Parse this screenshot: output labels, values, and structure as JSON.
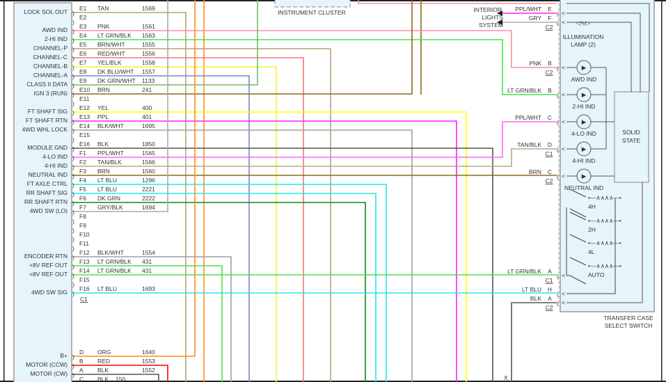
{
  "module_pins": [
    {
      "pin": "E1",
      "color": "TAN",
      "circuit": "1569",
      "func": "LOCK SOL OUT",
      "wire": "#b8a276"
    },
    {
      "pin": "E2",
      "color": "",
      "circuit": "",
      "func": "",
      "wire": ""
    },
    {
      "pin": "E3",
      "color": "PNK",
      "circuit": "1561",
      "func": "AWD IND",
      "wire": "#f68fa0"
    },
    {
      "pin": "E4",
      "color": "LT GRN/BLK",
      "circuit": "1563",
      "func": "2-HI IND",
      "wire": "#4ce24c"
    },
    {
      "pin": "E5",
      "color": "BRN/WHT",
      "circuit": "1555",
      "func": "CHANNEL-P",
      "wire": "#b8a276"
    },
    {
      "pin": "E6",
      "color": "RED/WHT",
      "circuit": "1556",
      "func": "CHANNEL-C",
      "wire": "#f27676"
    },
    {
      "pin": "E7",
      "color": "YEL/BLK",
      "circuit": "1558",
      "func": "CHANNEL-B",
      "wire": "#f5f030"
    },
    {
      "pin": "E8",
      "color": "DK BLU/WHT",
      "circuit": "1557",
      "func": "CHANNEL-A",
      "wire": "#7a86c4"
    },
    {
      "pin": "E9",
      "color": "DK GRN/WHT",
      "circuit": "1133",
      "func": "CLASS II DATA",
      "wire": "#6cba6c"
    },
    {
      "pin": "E10",
      "color": "BRN",
      "circuit": "241",
      "func": "IGN 3 (RUN)",
      "wire": "#8a6a1c"
    },
    {
      "pin": "E11",
      "color": "",
      "circuit": "",
      "func": "",
      "wire": ""
    },
    {
      "pin": "E12",
      "color": "YEL",
      "circuit": "400",
      "func": "FT SHAFT SIG",
      "wire": "#ffff00"
    },
    {
      "pin": "E13",
      "color": "PPL",
      "circuit": "401",
      "func": "FT SHAFT RTN",
      "wire": "#ff1aff"
    },
    {
      "pin": "E14",
      "color": "BLK/WHT",
      "circuit": "1695",
      "func": "4WD WHL LOCK",
      "wire": "#a0a0a0"
    },
    {
      "pin": "E15",
      "color": "",
      "circuit": "",
      "func": "",
      "wire": ""
    },
    {
      "pin": "E16",
      "color": "BLK",
      "circuit": "1850",
      "func": "MODULE GND",
      "wire": "#555555"
    },
    {
      "pin": "F1",
      "color": "PPL/WHT",
      "circuit": "1565",
      "func": "4-LO IND",
      "wire": "#ff66ff"
    },
    {
      "pin": "F2",
      "color": "TAN/BLK",
      "circuit": "1566",
      "func": "4-HI IND",
      "wire": "#b8a88a"
    },
    {
      "pin": "F3",
      "color": "BRN",
      "circuit": "1560",
      "func": "NEUTRAL IND",
      "wire": "#8a6a1c"
    },
    {
      "pin": "F4",
      "color": "LT BLU",
      "circuit": "1296",
      "func": "FT AXLE CTRL",
      "wire": "#22e8e8"
    },
    {
      "pin": "F5",
      "color": "LT BLU",
      "circuit": "2221",
      "func": "RR SHAFT SIG",
      "wire": "#22e8e8"
    },
    {
      "pin": "F6",
      "color": "DK GRN",
      "circuit": "2222",
      "func": "RR SHAFT RTN",
      "wire": "#0a8a0a"
    },
    {
      "pin": "F7",
      "color": "GRY/BLK",
      "circuit": "1694",
      "func": "4WD SW (LO)",
      "wire": "#aaaaaa"
    },
    {
      "pin": "F8",
      "color": "",
      "circuit": "",
      "func": "",
      "wire": ""
    },
    {
      "pin": "F9",
      "color": "",
      "circuit": "",
      "func": "",
      "wire": ""
    },
    {
      "pin": "F10",
      "color": "",
      "circuit": "",
      "func": "",
      "wire": ""
    },
    {
      "pin": "F11",
      "color": "",
      "circuit": "",
      "func": "",
      "wire": ""
    },
    {
      "pin": "F12",
      "color": "BLK/WHT",
      "circuit": "1554",
      "func": "ENCODER RTN",
      "wire": "#a0a0a0"
    },
    {
      "pin": "F13",
      "color": "LT GRN/BLK",
      "circuit": "431",
      "func": "+8V REF OUT",
      "wire": "#4ce24c"
    },
    {
      "pin": "F14",
      "color": "LT GRN/BLK",
      "circuit": "431",
      "func": "+8V REF OUT",
      "wire": "#4ce24c"
    },
    {
      "pin": "F15",
      "color": "",
      "circuit": "",
      "func": "",
      "wire": ""
    },
    {
      "pin": "F16",
      "color": "LT BLU",
      "circuit": "1693",
      "func": "4WD SW SIG",
      "wire": "#22e8e8"
    }
  ],
  "connector_c1_label": "C1",
  "motor_pins": [
    {
      "pin": "D",
      "color": "ORG",
      "circuit": "1640",
      "func": "B+",
      "wire": "#ff8c1a"
    },
    {
      "pin": "B",
      "color": "RED",
      "circuit": "1553",
      "func": "MOTOR (CCW)",
      "wire": "#ff0000"
    },
    {
      "pin": "A",
      "color": "BLK",
      "circuit": "1552",
      "func": "MOTOR (CW)",
      "wire": "#555555"
    },
    {
      "pin": "C",
      "color": "BLK",
      "circuit": "150",
      "func": "",
      "wire": "#555555"
    }
  ],
  "instrument_cluster": "INSTRUMENT CLUSTER",
  "interior_lights": [
    "INTERIOR",
    "LIGHTS",
    "SYSTEM"
  ],
  "switch_pins": [
    {
      "color": "PPL/WHT",
      "pin": "E",
      "conn": ""
    },
    {
      "color": "GRY",
      "pin": "F",
      "conn": "C2"
    },
    {
      "color": "PNK",
      "pin": "B",
      "conn": "C2"
    },
    {
      "color": "LT GRN/BLK",
      "pin": "B",
      "conn": ""
    },
    {
      "color": "PPL/WHT",
      "pin": "C",
      "conn": ""
    },
    {
      "color": "TAN/BLK",
      "pin": "D",
      "conn": "C1"
    },
    {
      "color": "BRN",
      "pin": "C",
      "conn": "C2"
    },
    {
      "color": "LT GRN/BLK",
      "pin": "A",
      "conn": "C1"
    },
    {
      "color": "LT BLU",
      "pin": "H",
      "conn": ""
    },
    {
      "color": "BLK",
      "pin": "A",
      "conn": "C2"
    }
  ],
  "illumination_lamp": [
    "ILLUMINATION",
    "LAMP (2)"
  ],
  "indicators": [
    "AWD IND",
    "2-HI IND",
    "4-LO IND",
    "4-HI IND",
    "NEUTRAL IND"
  ],
  "solid_state": [
    "SOLID",
    "STATE"
  ],
  "switch_positions": [
    "4H",
    "2H",
    "4L",
    "AUTO"
  ],
  "transfer_case_switch": [
    "TRANSFER CASE",
    "SELECT SWITCH"
  ],
  "splice_label": "X"
}
